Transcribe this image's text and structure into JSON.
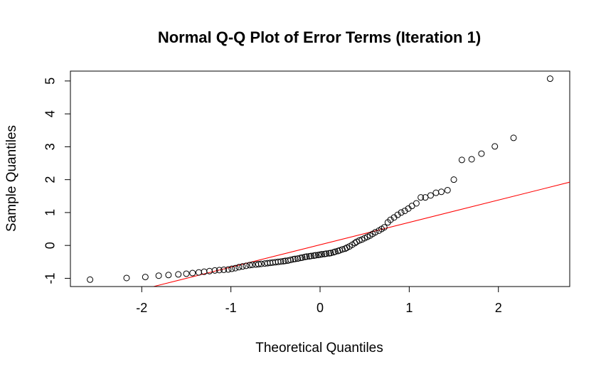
{
  "chart_data": {
    "type": "scatter",
    "title": "Normal Q-Q Plot of Error Terms (Iteration 1)",
    "xlabel": "Theoretical Quantiles",
    "ylabel": "Sample Quantiles",
    "xlim": [
      -2.8,
      2.8
    ],
    "ylim": [
      -1.25,
      5.3
    ],
    "x_ticks": [
      -2,
      -1,
      0,
      1,
      2
    ],
    "x_tick_labels": [
      "-2",
      "-1",
      "0",
      "1",
      "2"
    ],
    "y_ticks": [
      -1,
      0,
      1,
      2,
      3,
      4,
      5
    ],
    "y_tick_labels": [
      "-1",
      "0",
      "1",
      "2",
      "3",
      "4",
      "5"
    ],
    "grid": false,
    "colors": {
      "points": "#000000",
      "reference_line": "#ff0000"
    },
    "reference_line": {
      "intercept": 0.02,
      "slope": 0.68
    },
    "points": {
      "x": [
        -2.58,
        -2.17,
        -1.96,
        -1.81,
        -1.7,
        -1.59,
        -1.5,
        -1.43,
        -1.36,
        -1.3,
        -1.24,
        -1.18,
        -1.13,
        -1.08,
        -1.03,
        -0.99,
        -0.95,
        -0.91,
        -0.87,
        -0.83,
        -0.79,
        -0.76,
        -0.72,
        -0.69,
        -0.66,
        -0.62,
        -0.59,
        -0.56,
        -0.53,
        -0.5,
        -0.47,
        -0.44,
        -0.41,
        -0.39,
        -0.36,
        -0.33,
        -0.3,
        -0.28,
        -0.25,
        -0.22,
        -0.2,
        -0.17,
        -0.15,
        -0.12,
        -0.1,
        -0.07,
        -0.05,
        -0.02,
        0.0,
        0.02,
        0.05,
        0.07,
        0.1,
        0.12,
        0.15,
        0.17,
        0.2,
        0.22,
        0.25,
        0.28,
        0.3,
        0.33,
        0.36,
        0.39,
        0.41,
        0.44,
        0.47,
        0.5,
        0.53,
        0.56,
        0.59,
        0.62,
        0.66,
        0.69,
        0.72,
        0.76,
        0.79,
        0.83,
        0.87,
        0.91,
        0.95,
        0.99,
        1.03,
        1.08,
        1.13,
        1.18,
        1.24,
        1.3,
        1.36,
        1.43,
        1.5,
        1.59,
        1.7,
        1.81,
        1.96,
        2.17,
        2.58
      ],
      "y": [
        -1.04,
        -0.99,
        -0.96,
        -0.92,
        -0.9,
        -0.88,
        -0.86,
        -0.84,
        -0.82,
        -0.8,
        -0.78,
        -0.76,
        -0.75,
        -0.74,
        -0.73,
        -0.71,
        -0.69,
        -0.66,
        -0.64,
        -0.62,
        -0.6,
        -0.59,
        -0.58,
        -0.57,
        -0.56,
        -0.55,
        -0.54,
        -0.53,
        -0.52,
        -0.51,
        -0.5,
        -0.49,
        -0.48,
        -0.47,
        -0.46,
        -0.44,
        -0.42,
        -0.41,
        -0.4,
        -0.38,
        -0.37,
        -0.35,
        -0.34,
        -0.33,
        -0.32,
        -0.31,
        -0.3,
        -0.29,
        -0.28,
        -0.27,
        -0.26,
        -0.25,
        -0.24,
        -0.23,
        -0.21,
        -0.19,
        -0.17,
        -0.15,
        -0.12,
        -0.1,
        -0.07,
        -0.03,
        0.02,
        0.07,
        0.11,
        0.15,
        0.18,
        0.22,
        0.26,
        0.3,
        0.35,
        0.4,
        0.45,
        0.5,
        0.55,
        0.7,
        0.78,
        0.85,
        0.93,
        1.0,
        1.05,
        1.12,
        1.2,
        1.28,
        1.46,
        1.46,
        1.52,
        1.6,
        1.63,
        1.68,
        2.0,
        2.6,
        2.62,
        2.79,
        3.01,
        3.27,
        5.07
      ]
    }
  }
}
